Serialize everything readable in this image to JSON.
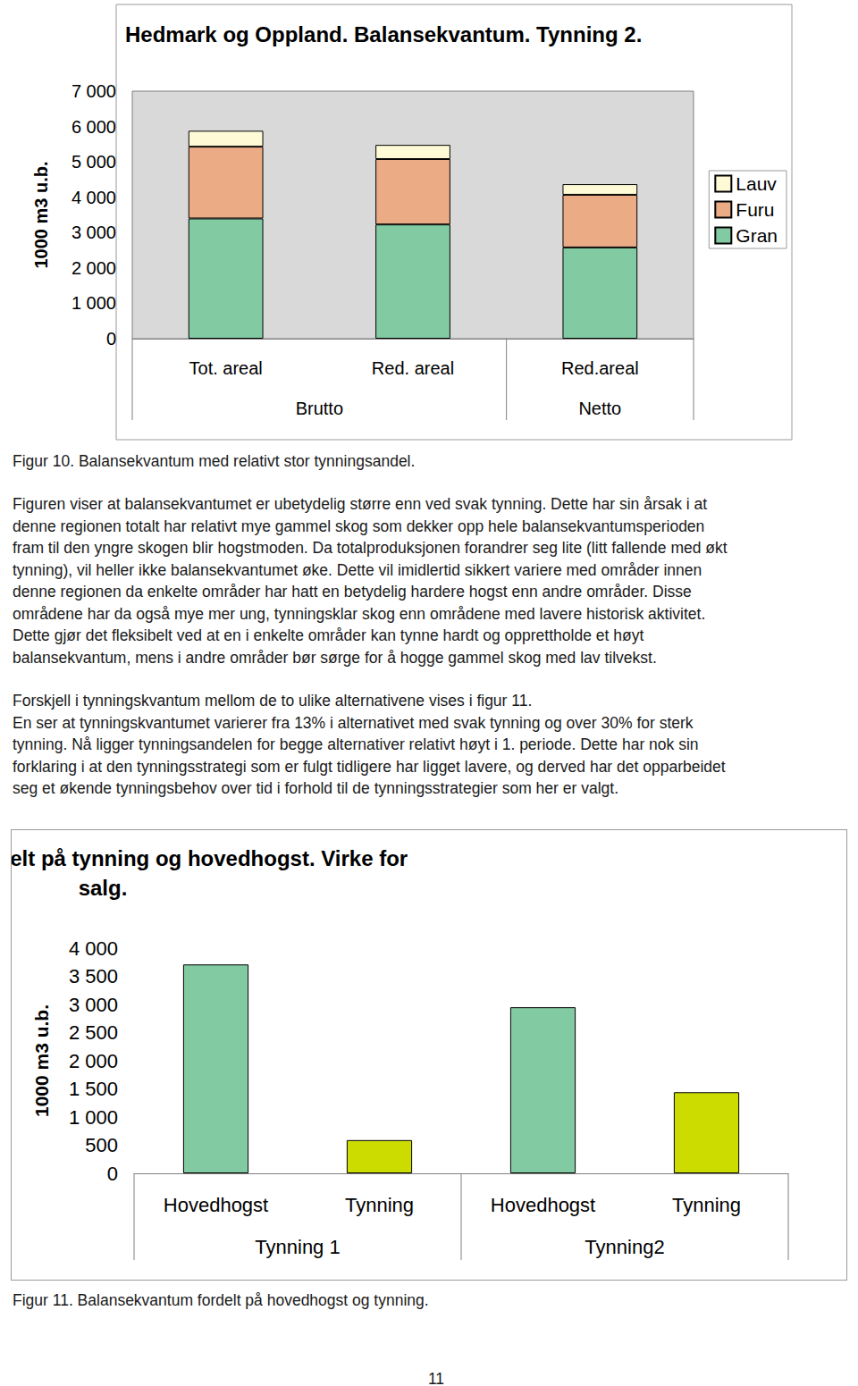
{
  "chart_data": [
    {
      "type": "bar",
      "title": "Hedmark og Oppland. Balansekvantum. Tynning 2.",
      "y_label": "1000 m3 u.b.",
      "categories": [
        "Tot. areal",
        "Red. areal",
        "Red.areal"
      ],
      "groups": [
        "Brutto",
        "Brutto",
        "Netto"
      ],
      "series": [
        {
          "name": "Gran",
          "color": "#82cba2",
          "values": [
            3400,
            3230,
            2580
          ]
        },
        {
          "name": "Furu",
          "color": "#ebab84",
          "values": [
            2030,
            1850,
            1490
          ]
        },
        {
          "name": "Lauv",
          "color": "#fffad6",
          "values": [
            450,
            400,
            300
          ]
        }
      ],
      "stacked": true,
      "ylim": [
        0,
        7000
      ],
      "yticks": [
        0,
        {
          "value": 1000,
          "label": "1 000"
        },
        {
          "value": 2000,
          "label": "2 000"
        },
        {
          "value": 3000,
          "label": "3 000"
        },
        {
          "value": 4000,
          "label": "4 000"
        },
        {
          "value": 5000,
          "label": "5 000"
        },
        {
          "value": 6000,
          "label": "6 000"
        },
        {
          "value": 7000,
          "label": "7 000"
        }
      ],
      "grid": false,
      "legend": "right"
    },
    {
      "type": "bar",
      "title": "Balansekvantum fordelt på tynning og hovedhogst. Virke for salg.",
      "y_label": "1000 m3 u.b.",
      "categories": [
        "Hovedhogst",
        "Tynning",
        "Hovedhogst",
        "Tynning"
      ],
      "groups": [
        "Tynning 1",
        "Tynning 1",
        "Tynning2",
        "Tynning2"
      ],
      "values": [
        3710,
        590,
        2950,
        1440
      ],
      "colors": [
        "#82cba2",
        "#cddc00",
        "#82cba2",
        "#cddc00"
      ],
      "ylim": [
        0,
        4000
      ],
      "yticks": [
        0,
        500,
        {
          "value": 1000,
          "label": "1 000"
        },
        {
          "value": 1500,
          "label": "1 500"
        },
        {
          "value": 2000,
          "label": "2 000"
        },
        {
          "value": 2500,
          "label": "2 500"
        },
        {
          "value": 3000,
          "label": "3 000"
        },
        {
          "value": 3500,
          "label": "3 500"
        },
        {
          "value": 4000,
          "label": "4 000"
        }
      ],
      "grid": false
    }
  ],
  "page": {
    "figure_captions": [
      "Figur 10. Balansekvantum med relativt stor tynningsandel.",
      "Figur 11. Balansekvantum fordelt på hovedhogst og tynning."
    ],
    "paragraphs": [
      [
        "Figuren viser at balansekvantumet er ubetydelig større enn ved svak tynning. Dette har sin årsak i at",
        "denne regionen totalt har relativt mye gammel skog som dekker opp hele balansekvantumsperioden",
        "fram til den yngre skogen blir hogstmoden. Da totalproduksjonen forandrer seg lite (litt fallende med økt",
        "tynning), vil heller ikke balansekvantumet øke. Dette vil imidlertid sikkert variere med områder innen",
        "denne regionen da enkelte områder har hatt en betydelig hardere hogst enn andre områder. Disse",
        "områdene har da også mye mer ung, tynningsklar skog enn områdene med lavere historisk aktivitet.",
        "Dette gjør det fleksibelt ved at en i enkelte områder kan tynne hardt og opprettholde et høyt",
        "balansekvantum, mens i andre områder bør sørge for å hogge gammel skog med lav tilvekst."
      ],
      [
        "Forskjell i tynningskvantum mellom de to ulike alternativene vises i figur 11.",
        "En ser at tynningskvantumet varierer fra 13% i alternativet med svak tynning og over 30% for sterk",
        "tynning. Nå ligger tynningsandelen for begge alternativer relativt høyt i 1. periode. Dette har nok sin",
        "forklaring i at den tynningsstrategi som er fulgt tidligere har ligget lavere, og derved har det opparbeidet",
        "seg et økende tynningsbehov over tid i forhold til de tynningsstrategier som her er valgt."
      ]
    ],
    "page_number": "11"
  }
}
